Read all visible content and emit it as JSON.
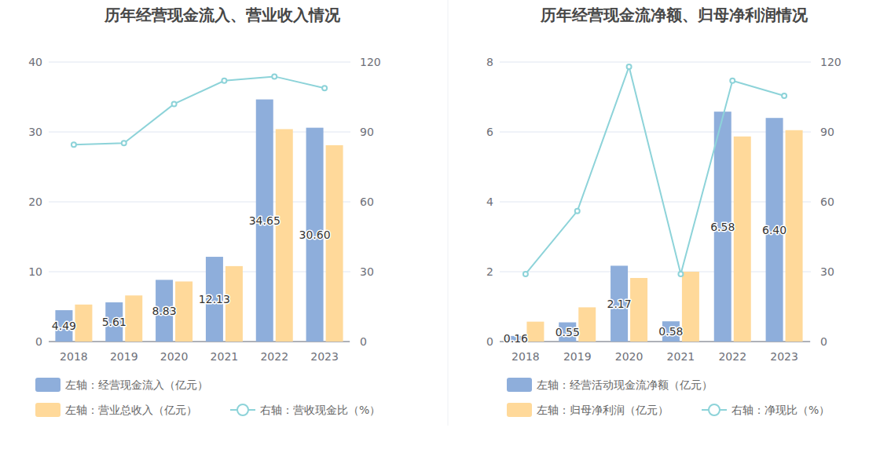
{
  "chart_data": [
    {
      "type": "bar",
      "title": "历年经营现金流入、营业收入情况",
      "categories": [
        "2018",
        "2019",
        "2020",
        "2021",
        "2022",
        "2023"
      ],
      "series": [
        {
          "name": "左轴：经营现金流入（亿元）",
          "type": "bar",
          "color": "#8eaedb",
          "data_labels": true,
          "values": [
            4.49,
            5.61,
            8.83,
            12.13,
            34.65,
            30.6
          ],
          "value_labels": [
            "4.49",
            "5.61",
            "8.83",
            "12.13",
            "34.65",
            "30.60"
          ]
        },
        {
          "name": "左轴：营业总收入（亿元）",
          "type": "bar",
          "color": "#ffd99a",
          "values": [
            5.3,
            6.6,
            8.6,
            10.8,
            30.4,
            28.1
          ]
        },
        {
          "name": "右轴：营收现金比（%）",
          "type": "line",
          "axis": "y2",
          "color": "#8dd3d9",
          "marker": "circle",
          "values": [
            84.5,
            85.2,
            102,
            112,
            113.8,
            108.8
          ]
        }
      ],
      "ylim": [
        0,
        40
      ],
      "yticks": [
        0,
        10,
        20,
        30,
        40
      ],
      "y2lim": [
        0,
        120
      ],
      "y2ticks": [
        0,
        30,
        60,
        90,
        120
      ],
      "grid": true,
      "legend": "bottom"
    },
    {
      "type": "bar",
      "title": "历年经营现金流净额、归母净利润情况",
      "categories": [
        "2018",
        "2019",
        "2020",
        "2021",
        "2022",
        "2023"
      ],
      "series": [
        {
          "name": "左轴：经营活动现金流净额（亿元）",
          "type": "bar",
          "color": "#8eaedb",
          "data_labels": true,
          "values": [
            0.16,
            0.55,
            2.17,
            0.58,
            6.58,
            6.4
          ],
          "value_labels": [
            "0.16",
            "0.55",
            "2.17",
            "0.58",
            "6.58",
            "6.40"
          ]
        },
        {
          "name": "左轴：归母净利润（亿元）",
          "type": "bar",
          "color": "#ffd99a",
          "values": [
            0.57,
            0.98,
            1.82,
            2.0,
            5.87,
            6.05
          ]
        },
        {
          "name": "右轴：净现比（%）",
          "type": "line",
          "axis": "y2",
          "color": "#8dd3d9",
          "marker": "circle",
          "values": [
            29,
            56,
            118,
            29,
            112,
            105.5
          ]
        }
      ],
      "ylim": [
        0,
        8
      ],
      "yticks": [
        0,
        2,
        4,
        6,
        8
      ],
      "y2lim": [
        0,
        120
      ],
      "y2ticks": [
        0,
        30,
        60,
        90,
        120
      ],
      "grid": true,
      "legend": "bottom"
    }
  ]
}
